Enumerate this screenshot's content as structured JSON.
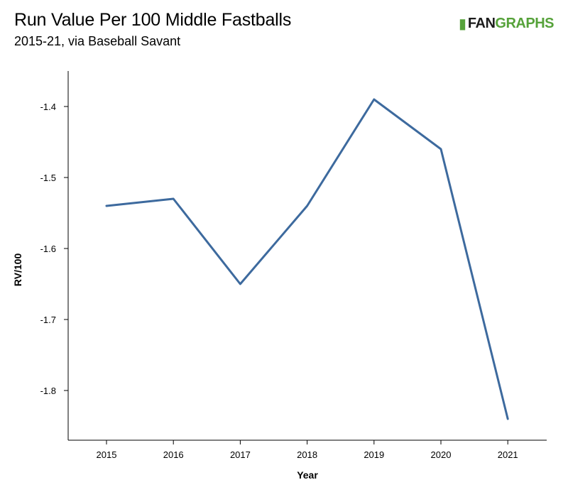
{
  "header": {
    "title": "Run Value Per 100 Middle Fastballs",
    "subtitle": "2015-21, via Baseball Savant"
  },
  "logo": {
    "brand_a": "FAN",
    "brand_b": "GRAPHS",
    "color_dark": "#1c1c1c",
    "color_green": "#56a23a"
  },
  "chart_data": {
    "type": "line",
    "x": [
      "2015",
      "2016",
      "2017",
      "2018",
      "2019",
      "2020",
      "2021"
    ],
    "series": [
      {
        "values": [
          -1.54,
          -1.53,
          -1.65,
          -1.54,
          -1.39,
          -1.46,
          -1.84
        ],
        "color": "#3d6a9e"
      }
    ],
    "xlabel": "Year",
    "ylabel": "RV/100",
    "yticks": [
      -1.4,
      -1.5,
      -1.6,
      -1.7,
      -1.8
    ],
    "ytick_labels": [
      "-1.4",
      "-1.5",
      "-1.6",
      "-1.7",
      "-1.8"
    ],
    "ylim": [
      -1.87,
      -1.35
    ],
    "grid": false,
    "legend": "none"
  }
}
